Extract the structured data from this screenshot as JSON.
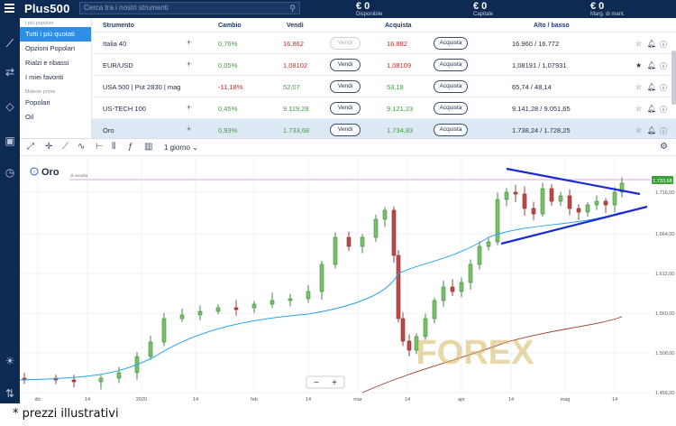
{
  "app": {
    "logo": "Plus500",
    "search_placeholder": "Cerca tra i nostri strumenti",
    "stats": [
      {
        "value": "€ 0",
        "label": "Disponibile"
      },
      {
        "value": "€ 0",
        "label": "Capitale"
      },
      {
        "value": "€ 0",
        "label": "Marg. di mant."
      }
    ]
  },
  "sidebar": {
    "groups": [
      {
        "heading": "I più popolari",
        "items": [
          "Tutti i più quotati",
          "Opzioni Popolari",
          "Rialzi e ribassi",
          "I miei favoriti"
        ]
      },
      {
        "heading": "Materie prime",
        "items": [
          "Popolari",
          "Oil"
        ]
      }
    ],
    "selected": "Tutti i più quotati"
  },
  "table": {
    "headers": {
      "instrument": "Strumento",
      "change": "Cambio",
      "sell": "Vendi",
      "buy": "Acquista",
      "highlow": "Alto / basso"
    },
    "rows": [
      {
        "name": "Italia 40",
        "change": "0,76%",
        "sell": "16.862",
        "buy": "16.882",
        "highlow": "16.960 / 16.772",
        "sell_btn": "Vendi",
        "buy_btn": "Acquista",
        "direction": "up-red",
        "sell_disabled": true,
        "fav": false
      },
      {
        "name": "EUR/USD",
        "change": "0,05%",
        "sell": "1,08102",
        "buy": "1,08109",
        "highlow": "1,08191 / 1,07931",
        "sell_btn": "Vendi",
        "buy_btn": "Acquista",
        "direction": "mixed",
        "sell_disabled": false,
        "fav": true
      },
      {
        "name": "USA 500 | Put 2830 | mag",
        "change": "-11,18%",
        "sell": "52,07",
        "buy": "53,18",
        "highlow": "65,74 / 48,14",
        "sell_btn": "Vendi",
        "buy_btn": "Acquista",
        "direction": "down",
        "sell_disabled": false,
        "fav": false
      },
      {
        "name": "US-TECH 100",
        "change": "0,45%",
        "sell": "9.119,28",
        "buy": "9.121,23",
        "highlow": "9.141,28 / 9.051,65",
        "sell_btn": "Vendi",
        "buy_btn": "Acquista",
        "direction": "up",
        "sell_disabled": false,
        "fav": false
      },
      {
        "name": "Oro",
        "change": "0,93%",
        "sell": "1.733,68",
        "buy": "1.734,83",
        "highlow": "1.738,24 / 1.728,25",
        "sell_btn": "Vendi",
        "buy_btn": "Acquista",
        "direction": "up",
        "sell_disabled": false,
        "fav": false
      }
    ]
  },
  "toolbar": {
    "timeframe": "1 giorno"
  },
  "chart": {
    "instrument": "Oro",
    "line_label": "di vendita",
    "price_tag": "1.733,68",
    "y_ticks": [
      "1.716,00",
      "1.664,00",
      "1.612,00",
      "1.560,00",
      "1.508,00",
      "1.456,00"
    ],
    "x_ticks": [
      "dic",
      "14",
      "2020",
      "14",
      "feb",
      "14",
      "mar",
      "14",
      "apr",
      "14",
      "mag",
      "14"
    ],
    "watermark": "FOREX",
    "zoom_minus": "−",
    "zoom_plus": "+"
  },
  "caption": "* prezzi illustrativi",
  "colors": {
    "navy": "#0f2a52",
    "accent": "#2f8de4",
    "up": "#39a239",
    "down": "#c82727",
    "trend": "#1a2bd6"
  }
}
